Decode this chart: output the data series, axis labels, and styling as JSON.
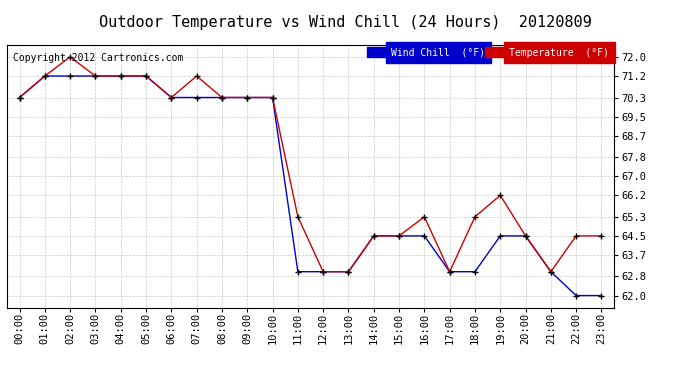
{
  "title": "Outdoor Temperature vs Wind Chill (24 Hours)  20120809",
  "copyright": "Copyright 2012 Cartronics.com",
  "x_labels": [
    "00:00",
    "01:00",
    "02:00",
    "03:00",
    "04:00",
    "05:00",
    "06:00",
    "07:00",
    "08:00",
    "09:00",
    "10:00",
    "11:00",
    "12:00",
    "13:00",
    "14:00",
    "15:00",
    "16:00",
    "17:00",
    "18:00",
    "19:00",
    "20:00",
    "21:00",
    "22:00",
    "23:00"
  ],
  "y_ticks": [
    62.0,
    62.8,
    63.7,
    64.5,
    65.3,
    66.2,
    67.0,
    67.8,
    68.7,
    69.5,
    70.3,
    71.2,
    72.0
  ],
  "ylim": [
    61.5,
    72.5
  ],
  "temperature": [
    70.3,
    71.2,
    72.0,
    71.2,
    71.2,
    71.2,
    70.3,
    71.2,
    70.3,
    70.3,
    70.3,
    65.3,
    63.0,
    63.0,
    64.5,
    64.5,
    65.3,
    63.0,
    65.3,
    66.2,
    64.5,
    63.0,
    64.5,
    64.5
  ],
  "wind_chill": [
    70.3,
    71.2,
    71.2,
    71.2,
    71.2,
    71.2,
    70.3,
    70.3,
    70.3,
    70.3,
    70.3,
    63.0,
    63.0,
    63.0,
    64.5,
    64.5,
    64.5,
    63.0,
    63.0,
    64.5,
    64.5,
    63.0,
    62.0,
    62.0
  ],
  "temp_color": "#cc0000",
  "wind_chill_color": "#0000cc",
  "marker_color": "#000000",
  "marker": "+",
  "marker_size": 4,
  "line_width": 1.0,
  "bg_color": "#ffffff",
  "grid_color": "#bbbbbb",
  "legend_wind_chill_bg": "#0000cc",
  "legend_temp_bg": "#cc0000",
  "legend_text_color": "#ffffff",
  "title_fontsize": 11,
  "tick_fontsize": 7.5,
  "copyright_fontsize": 7,
  "font_family": "monospace"
}
